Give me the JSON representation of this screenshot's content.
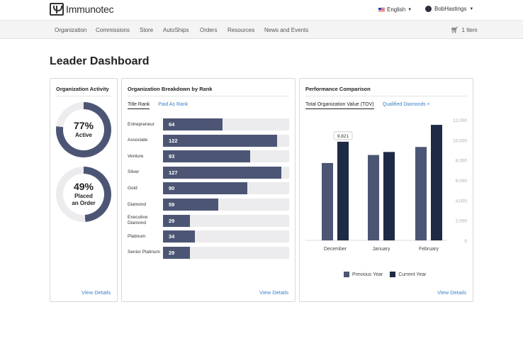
{
  "header": {
    "brand": "Immunotec",
    "language": "English",
    "user_name": "BobHastings"
  },
  "nav": {
    "items": [
      "Organization",
      "Commissions",
      "Store",
      "AutoShips",
      "Orders",
      "Resources",
      "News and Events"
    ],
    "cart_label": "1 Item"
  },
  "page": {
    "title": "Leader Dashboard"
  },
  "activity": {
    "title": "Organization Activity",
    "active_pct": "77%",
    "active_label": "Active",
    "active_value": 0.77,
    "placed_pct": "49%",
    "placed_label_line1": "Placed",
    "placed_label_line2": "an Order",
    "placed_value": 0.49,
    "view_details": "View Details"
  },
  "breakdown": {
    "title": "Organization Breakdown by Rank",
    "tab_title_rank": "Title Rank",
    "tab_paid_as_rank": "Paid As Rank",
    "max": 135,
    "ranks": [
      {
        "label": "Entrepreneur",
        "value": 64
      },
      {
        "label": "Associate",
        "value": 122
      },
      {
        "label": "Venture",
        "value": 93
      },
      {
        "label": "Silver",
        "value": 127
      },
      {
        "label": "Gold",
        "value": 90
      },
      {
        "label": "Diamond",
        "value": 59
      },
      {
        "label": "Executive Diamond",
        "value": 29
      },
      {
        "label": "Platinum",
        "value": 34
      },
      {
        "label": "Senior Platinum",
        "value": 29
      }
    ],
    "view_details": "View Details"
  },
  "performance": {
    "title": "Performance Comparison",
    "tab_tov": "Total Organization Value (TOV)",
    "tab_qualified": "Qualified Diamonds +",
    "tooltip": "9,821",
    "view_details": "View Details",
    "colors": {
      "previous": "#4c5674",
      "current": "#1f2a44"
    }
  },
  "chart_data": {
    "type": "bar",
    "categories": [
      "December",
      "January",
      "February"
    ],
    "series": [
      {
        "name": "Previous Year",
        "values": [
          7700,
          8500,
          9300
        ]
      },
      {
        "name": "Current Year",
        "values": [
          9821,
          8800,
          11500
        ]
      }
    ],
    "ylim": [
      0,
      12000
    ],
    "yticks": [
      "12,000",
      "10,000",
      "8,000",
      "6,000",
      "4,000",
      "2,000",
      "0"
    ],
    "legend": "bottom"
  }
}
